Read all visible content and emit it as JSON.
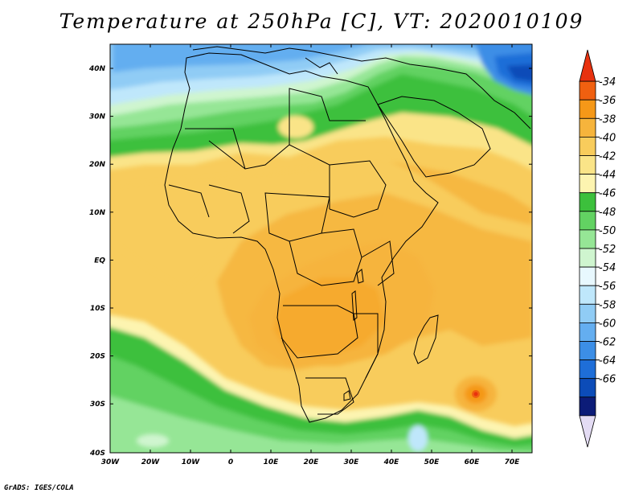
{
  "title": "Temperature at 250hPa [C], VT: 2020010109",
  "footer": "GrADS: IGES/COLA",
  "map": {
    "lat_ticks": [
      "40N",
      "30N",
      "20N",
      "10N",
      "EQ",
      "10S",
      "20S",
      "30S",
      "40S"
    ],
    "lon_ticks": [
      "30W",
      "20W",
      "10W",
      "0",
      "10E",
      "20E",
      "30E",
      "40E",
      "50E",
      "60E",
      "70E"
    ]
  },
  "colorbar": {
    "labels": [
      "-34",
      "-36",
      "-38",
      "-40",
      "-42",
      "-44",
      "-46",
      "-48",
      "-50",
      "-52",
      "-54",
      "-56",
      "-58",
      "-60",
      "-62",
      "-64",
      "-66"
    ],
    "colors": [
      "#e8320f",
      "#f06010",
      "#f59818",
      "#f6b43c",
      "#f8cc5c",
      "#fae488",
      "#fdf4b0",
      "#3cc03c",
      "#62d262",
      "#96e696",
      "#cff5cf",
      "#e8f8fe",
      "#bfe7fb",
      "#90ccf5",
      "#64aef0",
      "#3c8ee6",
      "#1e6ed8",
      "#0c4cb8",
      "#0c1c78",
      "#e4dcf4"
    ]
  }
}
